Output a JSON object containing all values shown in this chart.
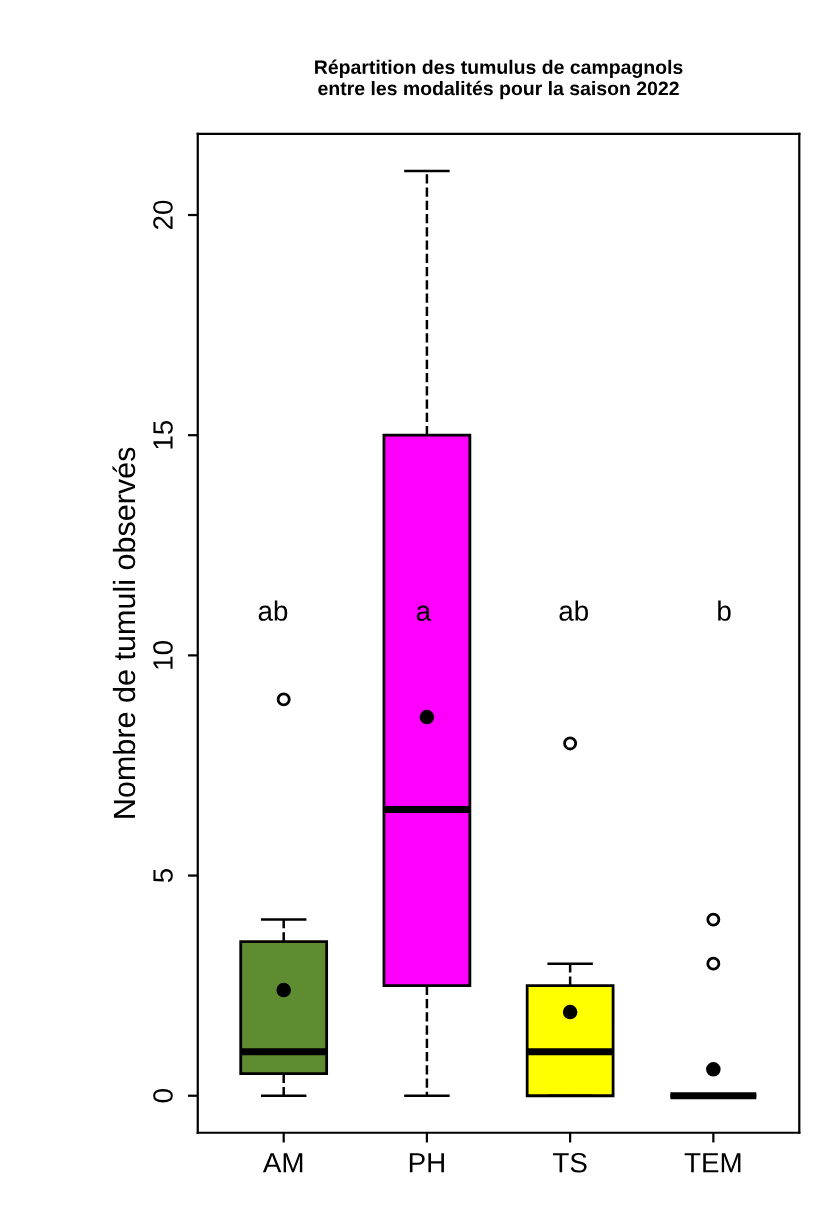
{
  "chart_data": {
    "type": "box",
    "title": "Répartition des tumulus de campagnols\nentre les modalités pour la saison 2022",
    "ylabel": "Nombre de tumuli observés",
    "categories": [
      "AM",
      "PH",
      "TS",
      "TEM"
    ],
    "colors": [
      "#5e8c31",
      "#ff00ff",
      "#ffff00",
      "#000000"
    ],
    "boxes": [
      {
        "low": 0,
        "q1": 0.5,
        "median": 1,
        "q3": 3.5,
        "high": 4,
        "outliers": [
          9
        ]
      },
      {
        "low": 0,
        "q1": 2.5,
        "median": 6.5,
        "q3": 15,
        "high": 21
      },
      {
        "low": 0,
        "q1": 0,
        "median": 1,
        "q3": 2.5,
        "high": 3,
        "outliers": [
          8
        ]
      },
      {
        "low": 0,
        "q1": 0,
        "median": 0,
        "q3": 0,
        "high": 0,
        "outliers": [
          3,
          4
        ]
      }
    ],
    "series": [
      {
        "type": "scatter",
        "x": [
          "AM",
          "PH",
          "TS",
          "TEM"
        ],
        "values": [
          2.4,
          8.6,
          1.9,
          0.6
        ],
        "color": "#000000"
      }
    ],
    "annotations": [
      "ab",
      "a",
      "ab",
      "b"
    ],
    "ylim": [
      -0.84,
      21.84
    ],
    "yticks": [
      0,
      5,
      10,
      15,
      20
    ],
    "grid": false,
    "legend": false
  }
}
